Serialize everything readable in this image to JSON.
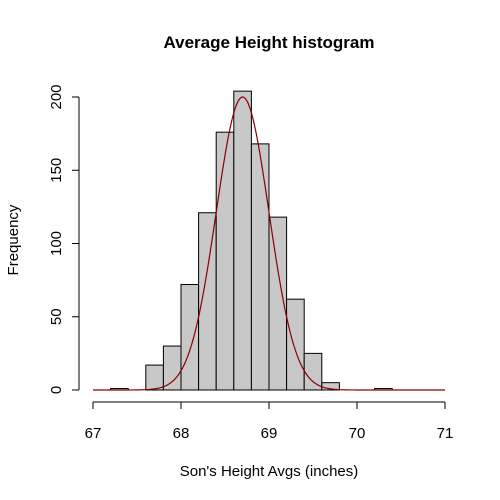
{
  "chart_data": {
    "type": "bar",
    "title": "Average Height histogram",
    "xlabel": "Son's Height Avgs (inches)",
    "ylabel": "Frequency",
    "xlim": [
      67,
      71
    ],
    "ylim": [
      0,
      200
    ],
    "x_ticks": [
      67,
      68,
      69,
      70,
      71
    ],
    "y_ticks": [
      0,
      50,
      100,
      150,
      200
    ],
    "bin_width": 0.2,
    "bins": [
      {
        "start": 67.0,
        "end": 67.2,
        "count": 0
      },
      {
        "start": 67.2,
        "end": 67.4,
        "count": 1
      },
      {
        "start": 67.4,
        "end": 67.6,
        "count": 0
      },
      {
        "start": 67.6,
        "end": 67.8,
        "count": 17
      },
      {
        "start": 67.8,
        "end": 68.0,
        "count": 30
      },
      {
        "start": 68.0,
        "end": 68.2,
        "count": 72
      },
      {
        "start": 68.2,
        "end": 68.4,
        "count": 121
      },
      {
        "start": 68.4,
        "end": 68.6,
        "count": 176
      },
      {
        "start": 68.6,
        "end": 68.8,
        "count": 204
      },
      {
        "start": 68.8,
        "end": 69.0,
        "count": 168
      },
      {
        "start": 69.0,
        "end": 69.2,
        "count": 118
      },
      {
        "start": 69.2,
        "end": 69.4,
        "count": 62
      },
      {
        "start": 69.4,
        "end": 69.6,
        "count": 25
      },
      {
        "start": 69.6,
        "end": 69.8,
        "count": 5
      },
      {
        "start": 69.8,
        "end": 70.0,
        "count": 0
      },
      {
        "start": 70.0,
        "end": 70.2,
        "count": 0
      },
      {
        "start": 70.2,
        "end": 70.4,
        "count": 1
      },
      {
        "start": 70.4,
        "end": 70.6,
        "count": 0
      },
      {
        "start": 70.6,
        "end": 70.8,
        "count": 0
      },
      {
        "start": 70.8,
        "end": 71.0,
        "count": 0
      }
    ],
    "density_curve": {
      "type": "normal",
      "mean": 68.7,
      "peak": 200,
      "sd": 0.3,
      "color": "#8b0000"
    },
    "bar_fill": "#c8c8c8"
  }
}
